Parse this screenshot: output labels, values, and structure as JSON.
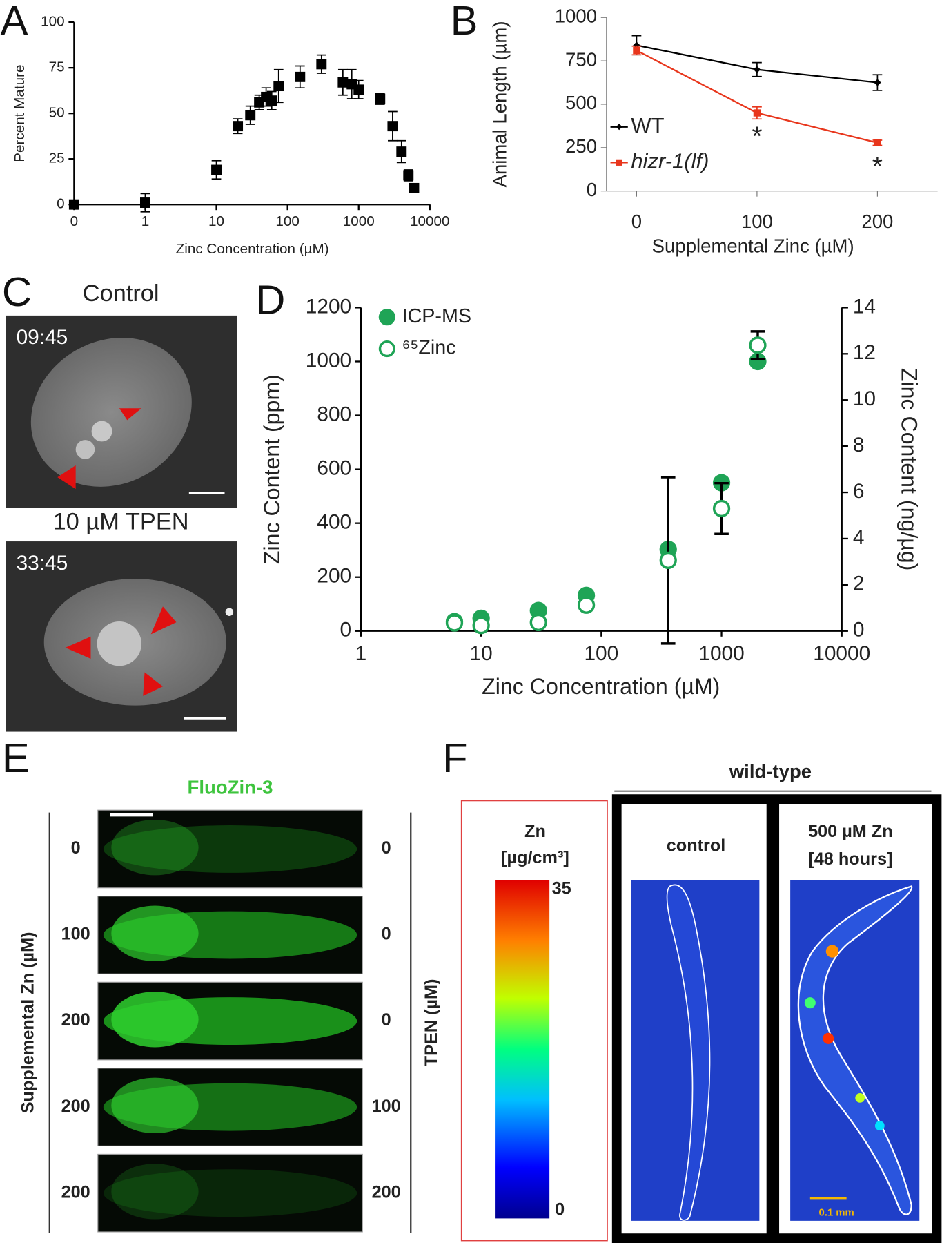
{
  "chart_data": [
    {
      "type": "scatter",
      "panel_label": "A",
      "x_label": "Zinc Concentration (µM)",
      "y_label": "Percent Mature",
      "x_scale": "log",
      "xlim": [
        0,
        10000
      ],
      "xticks": [
        0,
        1,
        10,
        100,
        1000,
        10000
      ],
      "ylim": [
        0,
        100
      ],
      "yticks": [
        0,
        25,
        50,
        75,
        100
      ],
      "series": [
        {
          "color": "#000000",
          "marker": "square",
          "x": [
            0,
            1,
            10,
            20,
            30,
            40,
            50,
            60,
            75,
            150,
            300,
            600,
            800,
            1000,
            2000,
            3000,
            4000,
            5000,
            6000
          ],
          "values": [
            0,
            1,
            19,
            43,
            49,
            56,
            59,
            57,
            65,
            70,
            77,
            67,
            66,
            63,
            58,
            43,
            29,
            16,
            9
          ],
          "errors": [
            1,
            5,
            5,
            4,
            5,
            4,
            5,
            5,
            9,
            6,
            5,
            7,
            8,
            5,
            3,
            8,
            6,
            3,
            2
          ]
        }
      ]
    },
    {
      "type": "line",
      "panel_label": "B",
      "x_label": "Supplemental Zinc  (µM)",
      "y_label": "Animal Length (µm)",
      "xlim": [
        -25,
        250
      ],
      "xticks": [
        0,
        100,
        200
      ],
      "ylim": [
        0,
        1000
      ],
      "yticks": [
        0,
        250,
        500,
        750,
        1000
      ],
      "legend": "left",
      "series": [
        {
          "name": "WT",
          "color": "#000000",
          "marker": "diamond",
          "font_style": "normal",
          "x": [
            0,
            100,
            200
          ],
          "values": [
            840,
            700,
            625
          ],
          "errors": [
            55,
            40,
            45
          ]
        },
        {
          "name": "hizr-1(lf)",
          "color": "#e8361c",
          "marker": "square",
          "font_style": "italic",
          "x": [
            0,
            100,
            200
          ],
          "values": [
            810,
            450,
            278
          ],
          "errors": [
            25,
            35,
            15
          ]
        }
      ],
      "annotations": [
        {
          "text": "*",
          "x": 100
        },
        {
          "text": "*",
          "x": 200
        }
      ]
    },
    {
      "type": "scatter",
      "panel_label": "D",
      "x_label": "Zinc Concentration (µM)",
      "y_label": "Zinc Content (ppm)",
      "y2_label": "Zinc Content (ng/µg)",
      "x_scale": "log",
      "xlim": [
        1,
        10000
      ],
      "xticks": [
        1,
        10,
        100,
        1000,
        10000
      ],
      "ylim": [
        0,
        1200
      ],
      "yticks": [
        0,
        200,
        400,
        600,
        800,
        1000,
        1200
      ],
      "y2lim": [
        0,
        14
      ],
      "y2ticks": [
        0,
        2,
        4,
        6,
        8,
        10,
        12,
        14
      ],
      "legend": "upper left",
      "series": [
        {
          "name": "ICP-MS",
          "color": "#1fa456",
          "marker": "filled-circle",
          "axis": "y",
          "x": [
            6,
            10,
            30,
            75,
            360,
            1000,
            2000
          ],
          "values": [
            35,
            47,
            76,
            132,
            303,
            550,
            1000
          ],
          "errors": [
            null,
            null,
            null,
            null,
            null,
            null,
            null
          ]
        },
        {
          "name": "⁶⁵Zinc",
          "color": "#1fa456",
          "marker": "open-circle",
          "axis": "y2",
          "x": [
            6,
            10,
            30,
            75,
            360,
            1000,
            2000
          ],
          "values": [
            0.35,
            0.24,
            0.37,
            1.12,
            3.06,
            5.3,
            12.37
          ],
          "errors": [
            null,
            null,
            null,
            null,
            3.6,
            1.1,
            0.6
          ]
        }
      ]
    }
  ],
  "panel_c": {
    "label": "C",
    "rows": [
      {
        "title": "Control",
        "time": "09:45"
      },
      {
        "title": "10 µM TPEN",
        "time": "33:45"
      }
    ]
  },
  "panel_e": {
    "label": "E",
    "title": "FluoZin-3",
    "left_axis": "Supplemental Zn (µM)",
    "right_axis": "TPEN (µM)",
    "rows": [
      [
        "0",
        "0"
      ],
      [
        "100",
        "0"
      ],
      [
        "200",
        "0"
      ],
      [
        "200",
        "100"
      ],
      [
        "200",
        "200"
      ]
    ]
  },
  "panel_f": {
    "label": "F",
    "group": "wild-type",
    "colorbar_title": "Zn",
    "colorbar_unit": "[µg/cm³]",
    "colorbar_max": "35",
    "colorbar_min": "0",
    "control": "control",
    "treated": "500 µM Zn",
    "treated_time": "[48 hours]",
    "scale_bar": "0.1 mm"
  }
}
